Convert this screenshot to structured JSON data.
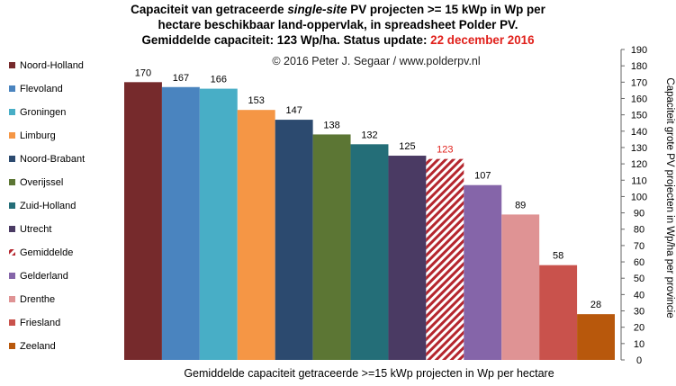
{
  "title": {
    "line1_pre": "Capaciteit van getraceerde ",
    "line1_italic": "single-site",
    "line1_post": " PV projecten >= 15 kWp in Wp per",
    "line2": "hectare beschikbaar land-oppervlak, in spreadsheet Polder PV.",
    "line3_pre": "Gemiddelde capaciteit: 123 Wp/ha. Status update: ",
    "line3_date": "22 december 2016"
  },
  "colors": {
    "title_date": "#e0201b",
    "average_label": "#e0201b",
    "average_hatch": "#b5262e"
  },
  "chart_data": {
    "type": "bar",
    "watermark": "© 2016 Peter J. Segaar / www.polderpv.nl",
    "xlabel": "Gemiddelde capaciteit getraceerde >=15 kWp projecten in Wp per hectare",
    "ylabel": "Capaciteit grote PV projecten in Wp/ha per provincie",
    "ylim": [
      0,
      190
    ],
    "ytick_step": 10,
    "axis_side": "right",
    "grid": false,
    "legend_position": "left",
    "categories": [
      "Noord-Holland",
      "Flevoland",
      "Groningen",
      "Limburg",
      "Noord-Brabant",
      "Overijssel",
      "Zuid-Holland",
      "Utrecht",
      "Gemiddelde",
      "Gelderland",
      "Drenthe",
      "Friesland",
      "Zeeland"
    ],
    "values": [
      170,
      167,
      166,
      153,
      147,
      138,
      132,
      125,
      123,
      107,
      89,
      58,
      28
    ],
    "colors": [
      "#762a2c",
      "#4a84bf",
      "#48aec6",
      "#f59645",
      "#2c4a6f",
      "#5c7634",
      "#246e78",
      "#4a3a63",
      "#b5262e",
      "#8565a9",
      "#df9394",
      "#c9524c",
      "#b8580c"
    ],
    "patterns": [
      "solid",
      "solid",
      "solid",
      "solid",
      "solid",
      "solid",
      "solid",
      "solid",
      "hatch",
      "solid",
      "solid",
      "solid",
      "solid"
    ]
  }
}
